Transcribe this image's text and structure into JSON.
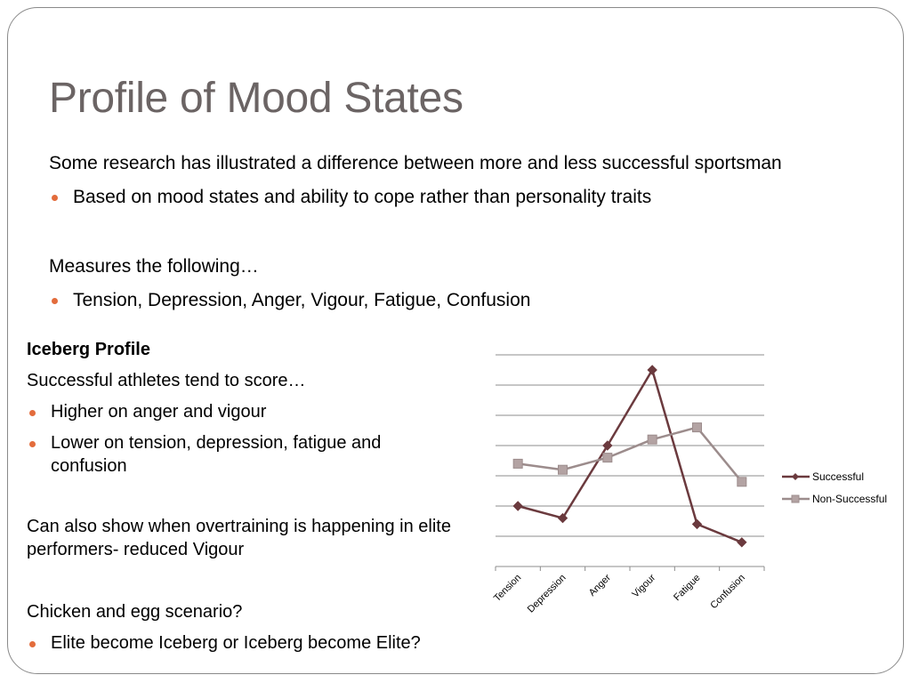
{
  "slide": {
    "title": "Profile of Mood States",
    "intro": "Some research has illustrated a difference between more and less successful sportsman",
    "intro_bullet": "Based on mood states and ability to cope rather than personality traits",
    "measures_heading": "Measures the following…",
    "measures_bullet": "Tension, Depression, Anger, Vigour, Fatigue, Confusion"
  },
  "left": {
    "heading": "Iceberg Profile",
    "lead": "Successful athletes tend to score…",
    "bullet1": "Higher on anger and vigour",
    "bullet2": "Lower on tension, depression, fatigue and confusion",
    "overtraining": "Can also show when overtraining is happening in elite performers- reduced Vigour",
    "chicken": "Chicken and egg scenario?",
    "bullet3": "Elite become Iceberg or Iceberg become Elite?"
  },
  "colors": {
    "bullet": "#e36c3c",
    "title": "#6b6464",
    "successful": "#6b3a3e",
    "non_successful": "#9c8c8c"
  },
  "chart_data": {
    "type": "line",
    "categories": [
      "Tension",
      "Depression",
      "Anger",
      "Vigour",
      "Fatigue",
      "Confusion"
    ],
    "series": [
      {
        "name": "Successful",
        "marker": "diamond",
        "values": [
          2,
          1.6,
          4,
          6.5,
          1.4,
          0.8
        ]
      },
      {
        "name": "Non-Successful",
        "marker": "square",
        "values": [
          3.4,
          3.2,
          3.6,
          4.2,
          4.6,
          2.8
        ]
      }
    ],
    "ylim": [
      0,
      7
    ],
    "grid": true,
    "legend": "right",
    "title": "",
    "xlabel": "",
    "ylabel": ""
  }
}
